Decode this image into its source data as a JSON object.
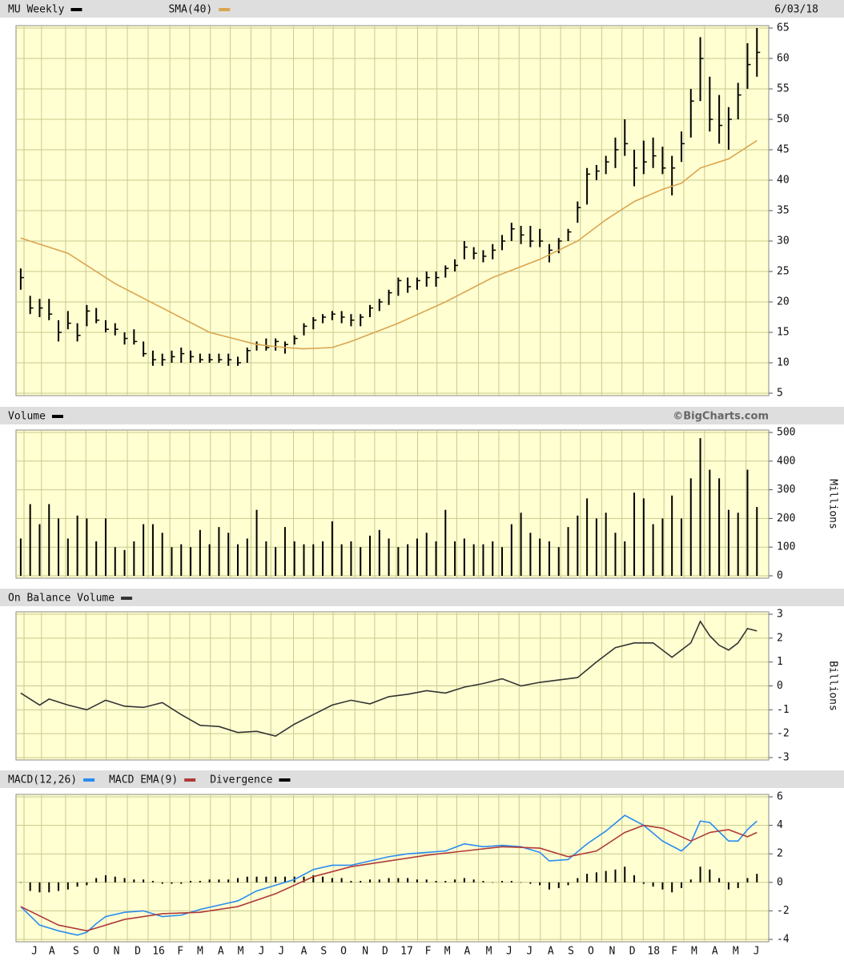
{
  "chart_data": [
    {
      "type": "hlc",
      "date_label": "6/03/18",
      "xlim": [
        -1,
        158.5
      ],
      "ylim": [
        5,
        65
      ],
      "yticks": [
        5,
        10,
        15,
        20,
        25,
        30,
        35,
        40,
        45,
        50,
        55,
        60,
        65
      ],
      "grid": true,
      "x": [
        0,
        2,
        4,
        6,
        8,
        10,
        12,
        14,
        16,
        18,
        20,
        22,
        24,
        26,
        28,
        30,
        32,
        34,
        36,
        38,
        40,
        42,
        44,
        46,
        48,
        50,
        52,
        54,
        56,
        58,
        60,
        62,
        64,
        66,
        68,
        70,
        72,
        74,
        76,
        78,
        80,
        82,
        84,
        86,
        88,
        90,
        92,
        94,
        96,
        98,
        100,
        102,
        104,
        106,
        108,
        110,
        112,
        114,
        116,
        118,
        120,
        122,
        124,
        126,
        128,
        130,
        132,
        134,
        136,
        138,
        140,
        142,
        144,
        146,
        148,
        150,
        152,
        154,
        156
      ],
      "series": [
        {
          "name": "MU Weekly",
          "color": "#000000",
          "high": [
            25.5,
            21,
            20.5,
            20.5,
            17,
            18.5,
            16.5,
            19.5,
            19,
            17,
            16.5,
            15,
            15.5,
            13.5,
            12,
            11.5,
            12,
            12.5,
            12,
            11.5,
            11.5,
            11.5,
            11.5,
            11,
            12.5,
            13.5,
            14,
            14,
            13.5,
            14.5,
            16.5,
            17.5,
            18,
            18.5,
            18.5,
            18,
            18,
            19.5,
            20.5,
            22,
            24,
            24,
            24,
            25,
            25,
            26,
            27,
            30,
            29,
            28.5,
            29.5,
            31,
            33,
            32.5,
            32.5,
            32,
            29.5,
            30.5,
            32,
            36.5,
            42,
            42.5,
            44,
            47,
            50,
            45,
            46.5,
            47,
            45.5,
            44,
            48,
            55,
            63.5,
            57,
            54,
            52,
            56,
            62.5,
            65
          ],
          "low": [
            22,
            18,
            17.5,
            17,
            13.5,
            15.5,
            13.5,
            16,
            16.5,
            15,
            14.5,
            13,
            13,
            11,
            9.5,
            9.5,
            10,
            10,
            10,
            10,
            10,
            10,
            9.5,
            9.5,
            10,
            12,
            12,
            12,
            11.5,
            13,
            14.5,
            15.5,
            16.5,
            17,
            16.5,
            16,
            16,
            17.5,
            18.5,
            19.5,
            21,
            21.5,
            22,
            22.5,
            22.5,
            24,
            25,
            27,
            27,
            26.5,
            27,
            28.5,
            30,
            29.5,
            29,
            29,
            26.5,
            28,
            30,
            33,
            36,
            40,
            41,
            42,
            44,
            39,
            41,
            42,
            41,
            37.5,
            43,
            47,
            53,
            48,
            46,
            45,
            50,
            55,
            57
          ],
          "close": [
            24,
            19,
            19,
            18,
            15,
            16.5,
            14.5,
            18.5,
            17,
            15.5,
            15.5,
            14,
            13.5,
            11.5,
            10.5,
            10.5,
            11,
            11.5,
            11,
            10.5,
            10.5,
            10.5,
            10.5,
            10,
            12,
            13,
            12.5,
            13.5,
            13,
            14,
            16,
            17,
            17.5,
            18,
            17.5,
            17,
            17.5,
            19,
            20,
            21.5,
            23.5,
            22.5,
            23.5,
            24,
            24,
            25.5,
            26,
            29,
            28,
            27.5,
            28.5,
            30,
            32,
            31,
            30,
            30,
            28.5,
            30,
            31.5,
            35.5,
            41,
            41.5,
            43,
            45,
            46,
            42,
            43,
            44,
            42,
            42,
            46,
            53,
            60,
            50,
            49,
            50,
            54,
            59,
            61
          ]
        },
        {
          "name": "SMA(40)",
          "type": "line",
          "color": "#d9a550",
          "x": [
            0,
            10,
            20,
            30,
            40,
            50,
            56,
            60,
            66,
            70,
            80,
            90,
            100,
            110,
            118,
            124,
            130,
            136,
            140,
            144,
            150,
            156
          ],
          "values": [
            30.5,
            28,
            23,
            19,
            15,
            13,
            12.5,
            12.3,
            12.5,
            13.5,
            16.5,
            20,
            24,
            27,
            30,
            33.5,
            36.5,
            38.5,
            39.5,
            42,
            43.5,
            46.5
          ]
        }
      ]
    },
    {
      "type": "bar",
      "credit": "©BigCharts.com",
      "y_label": "Millions",
      "xlim": [
        -1,
        158.5
      ],
      "ylim": [
        0,
        500
      ],
      "yticks": [
        0,
        100,
        200,
        300,
        400,
        500
      ],
      "grid": true,
      "x": [
        0,
        2,
        4,
        6,
        8,
        10,
        12,
        14,
        16,
        18,
        20,
        22,
        24,
        26,
        28,
        30,
        32,
        34,
        36,
        38,
        40,
        42,
        44,
        46,
        48,
        50,
        52,
        54,
        56,
        58,
        60,
        62,
        64,
        66,
        68,
        70,
        72,
        74,
        76,
        78,
        80,
        82,
        84,
        86,
        88,
        90,
        92,
        94,
        96,
        98,
        100,
        102,
        104,
        106,
        108,
        110,
        112,
        114,
        116,
        118,
        120,
        122,
        124,
        126,
        128,
        130,
        132,
        134,
        136,
        138,
        140,
        142,
        144,
        146,
        148,
        150,
        152,
        154,
        156
      ],
      "series": [
        {
          "name": "Volume",
          "color": "#000000",
          "values": [
            130,
            250,
            180,
            250,
            200,
            130,
            210,
            200,
            120,
            200,
            100,
            90,
            120,
            180,
            180,
            150,
            100,
            110,
            100,
            160,
            110,
            170,
            150,
            110,
            130,
            230,
            120,
            100,
            170,
            120,
            110,
            110,
            120,
            190,
            110,
            120,
            100,
            140,
            160,
            130,
            100,
            110,
            130,
            150,
            120,
            230,
            120,
            130,
            110,
            110,
            120,
            100,
            180,
            220,
            150,
            130,
            120,
            100,
            170,
            210,
            270,
            200,
            220,
            150,
            120,
            290,
            270,
            180,
            200,
            280,
            200,
            340,
            480,
            370,
            340,
            230,
            220,
            370,
            240
          ]
        }
      ]
    },
    {
      "type": "line",
      "y_label": "Billions",
      "xlim": [
        -1,
        158.5
      ],
      "ylim": [
        -3,
        3
      ],
      "yticks": [
        -3,
        -2,
        -1,
        0,
        1,
        2,
        3
      ],
      "grid": true,
      "series": [
        {
          "name": "On Balance Volume",
          "color": "#333333",
          "x": [
            0,
            4,
            6,
            10,
            14,
            18,
            22,
            26,
            30,
            34,
            38,
            42,
            46,
            50,
            54,
            58,
            62,
            66,
            70,
            74,
            78,
            82,
            86,
            90,
            94,
            98,
            102,
            106,
            110,
            114,
            118,
            122,
            126,
            130,
            134,
            138,
            140,
            142,
            144,
            146,
            148,
            150,
            152,
            154,
            156
          ],
          "values": [
            -0.3,
            -0.8,
            -0.55,
            -0.8,
            -1.0,
            -0.6,
            -0.85,
            -0.9,
            -0.7,
            -1.2,
            -1.65,
            -1.7,
            -1.95,
            -1.9,
            -2.1,
            -1.6,
            -1.2,
            -0.8,
            -0.6,
            -0.75,
            -0.45,
            -0.35,
            -0.2,
            -0.3,
            -0.05,
            0.1,
            0.3,
            0.0,
            0.15,
            0.25,
            0.35,
            1.0,
            1.6,
            1.8,
            1.8,
            1.2,
            1.5,
            1.8,
            2.7,
            2.1,
            1.7,
            1.5,
            1.8,
            2.4,
            2.3
          ]
        }
      ]
    },
    {
      "type": "line",
      "xlim": [
        -1,
        158.5
      ],
      "ylim": [
        -4,
        6
      ],
      "yticks": [
        -4,
        -2,
        0,
        2,
        4,
        6
      ],
      "grid": true,
      "xticks": [
        {
          "value": 0.7,
          "label": "J"
        },
        {
          "value": 4.4,
          "label": "A"
        },
        {
          "value": 9.5,
          "label": "S"
        },
        {
          "value": 13.8,
          "label": "O"
        },
        {
          "value": 18.1,
          "label": "N"
        },
        {
          "value": 22.6,
          "label": "D"
        },
        {
          "value": 27.0,
          "label": "16"
        },
        {
          "value": 31.6,
          "label": "F"
        },
        {
          "value": 35.8,
          "label": "M"
        },
        {
          "value": 40.2,
          "label": "A"
        },
        {
          "value": 44.4,
          "label": "M"
        },
        {
          "value": 48.8,
          "label": "J"
        },
        {
          "value": 53.0,
          "label": "J"
        },
        {
          "value": 57.8,
          "label": "A"
        },
        {
          "value": 62.0,
          "label": "S"
        },
        {
          "value": 66.2,
          "label": "O"
        },
        {
          "value": 70.8,
          "label": "N"
        },
        {
          "value": 75.0,
          "label": "D"
        },
        {
          "value": 79.6,
          "label": "17"
        },
        {
          "value": 84.1,
          "label": "F"
        },
        {
          "value": 88.2,
          "label": "M"
        },
        {
          "value": 92.4,
          "label": "A"
        },
        {
          "value": 97.0,
          "label": "M"
        },
        {
          "value": 101.3,
          "label": "J"
        },
        {
          "value": 105.6,
          "label": "J"
        },
        {
          "value": 110.1,
          "label": "A"
        },
        {
          "value": 114.4,
          "label": "S"
        },
        {
          "value": 118.6,
          "label": "O"
        },
        {
          "value": 123.1,
          "label": "N"
        },
        {
          "value": 127.4,
          "label": "D"
        },
        {
          "value": 131.9,
          "label": "18"
        },
        {
          "value": 136.3,
          "label": "F"
        },
        {
          "value": 140.5,
          "label": "M"
        },
        {
          "value": 144.9,
          "label": "A"
        },
        {
          "value": 149.3,
          "label": "M"
        },
        {
          "value": 153.7,
          "label": "J"
        }
      ],
      "x": [
        0,
        2,
        4,
        6,
        8,
        10,
        12,
        14,
        16,
        18,
        20,
        22,
        24,
        26,
        28,
        30,
        32,
        34,
        36,
        38,
        40,
        42,
        44,
        46,
        48,
        50,
        52,
        54,
        56,
        58,
        60,
        62,
        64,
        66,
        68,
        70,
        72,
        74,
        76,
        78,
        80,
        82,
        84,
        86,
        88,
        90,
        92,
        94,
        96,
        98,
        100,
        102,
        104,
        106,
        108,
        110,
        112,
        114,
        116,
        118,
        120,
        122,
        124,
        126,
        128,
        130,
        132,
        134,
        136,
        138,
        140,
        142,
        144,
        146,
        148,
        150,
        152,
        154,
        156
      ],
      "series": [
        {
          "name": "MACD(12,26)",
          "color": "#2a8cf0",
          "x": [
            0,
            4,
            8,
            12,
            14,
            16,
            18,
            22,
            26,
            30,
            34,
            38,
            42,
            46,
            50,
            54,
            58,
            62,
            66,
            70,
            74,
            78,
            82,
            86,
            90,
            94,
            98,
            102,
            106,
            110,
            112,
            116,
            120,
            124,
            128,
            132,
            136,
            140,
            142,
            144,
            146,
            150,
            152,
            154,
            156
          ],
          "values": [
            -1.7,
            -3.0,
            -3.4,
            -3.7,
            -3.5,
            -2.9,
            -2.4,
            -2.1,
            -2.0,
            -2.4,
            -2.3,
            -1.9,
            -1.6,
            -1.3,
            -0.6,
            -0.2,
            0.2,
            0.9,
            1.2,
            1.2,
            1.5,
            1.8,
            2.0,
            2.1,
            2.2,
            2.7,
            2.5,
            2.6,
            2.5,
            2.1,
            1.5,
            1.6,
            2.7,
            3.6,
            4.7,
            4.0,
            2.9,
            2.2,
            2.8,
            4.3,
            4.2,
            2.9,
            2.9,
            3.7,
            4.3
          ]
        },
        {
          "name": "MACD EMA(9)",
          "color": "#b03a3a",
          "x": [
            0,
            8,
            14,
            18,
            22,
            30,
            38,
            46,
            54,
            62,
            70,
            78,
            86,
            94,
            102,
            110,
            116,
            122,
            128,
            132,
            136,
            142,
            146,
            150,
            154,
            156
          ],
          "values": [
            -1.7,
            -3.0,
            -3.4,
            -3.0,
            -2.6,
            -2.2,
            -2.1,
            -1.7,
            -0.8,
            0.4,
            1.1,
            1.5,
            1.9,
            2.2,
            2.5,
            2.4,
            1.8,
            2.2,
            3.5,
            4.0,
            3.8,
            2.9,
            3.5,
            3.7,
            3.2,
            3.5
          ]
        },
        {
          "name": "Divergence",
          "type": "bar",
          "color": "#000000",
          "values": [
            0,
            -0.6,
            -0.7,
            -0.7,
            -0.6,
            -0.5,
            -0.3,
            -0.2,
            0.3,
            0.5,
            0.4,
            0.3,
            0.2,
            0.2,
            0.1,
            -0.1,
            -0.1,
            -0.1,
            0.1,
            0.1,
            0.2,
            0.2,
            0.2,
            0.3,
            0.4,
            0.4,
            0.4,
            0.4,
            0.4,
            0.4,
            0.4,
            0.5,
            0.4,
            0.3,
            0.3,
            0.1,
            0.1,
            0.2,
            0.2,
            0.3,
            0.3,
            0.3,
            0.2,
            0.2,
            0.1,
            0.1,
            0.2,
            0.3,
            0.2,
            0.1,
            0.0,
            0.1,
            0.1,
            0.0,
            -0.1,
            -0.2,
            -0.5,
            -0.4,
            -0.2,
            0.3,
            0.6,
            0.7,
            0.8,
            0.9,
            1.1,
            0.5,
            -0.1,
            -0.3,
            -0.5,
            -0.7,
            -0.4,
            0.2,
            1.1,
            0.9,
            0.3,
            -0.5,
            -0.4,
            0.3,
            0.6
          ]
        }
      ]
    }
  ]
}
